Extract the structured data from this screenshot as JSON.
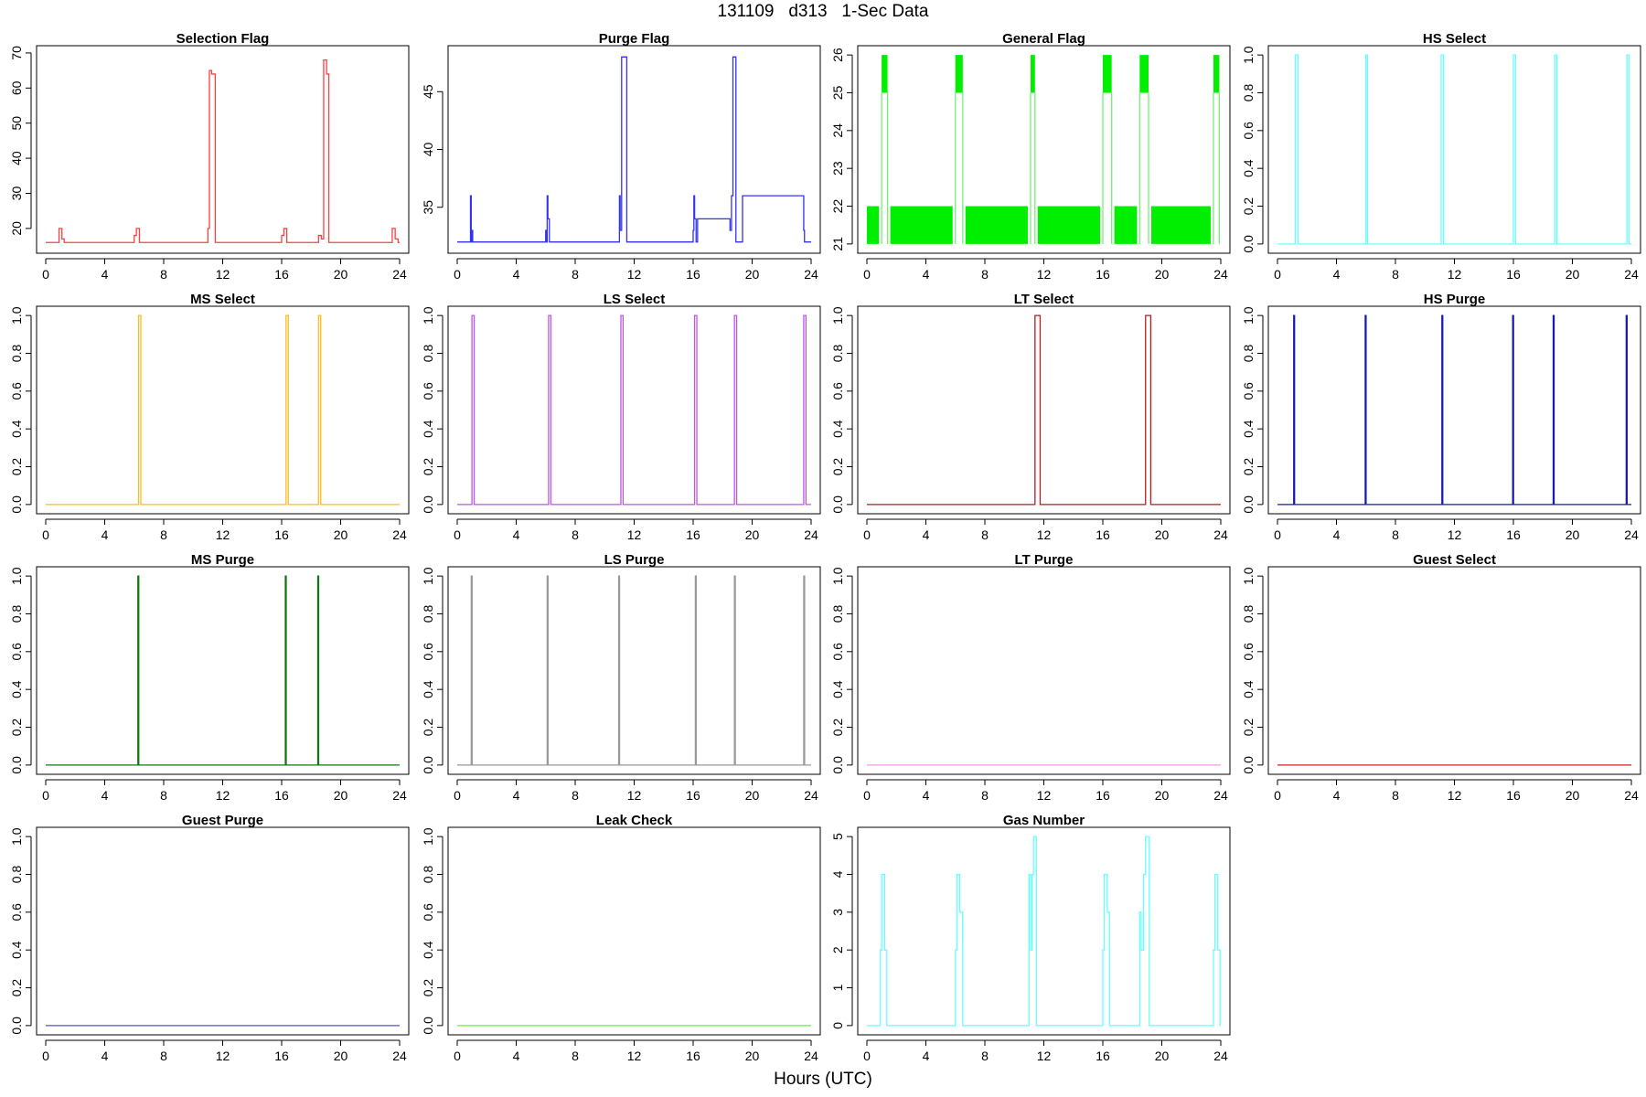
{
  "figure": {
    "title": "131109   d313   1-Sec Data",
    "xlabel": "Hours (UTC)"
  },
  "chart_data": [
    {
      "type": "line",
      "title": "Selection Flag",
      "color": "#ff4040",
      "xlim": [
        0,
        24
      ],
      "ylim": [
        14.5,
        70.5
      ],
      "xticks": [
        0,
        4,
        8,
        12,
        16,
        20,
        24
      ],
      "yticks": [
        20,
        30,
        40,
        50,
        60,
        70
      ],
      "x": [
        0,
        0.9,
        0.9,
        1.1,
        1.1,
        1.25,
        1.25,
        6.0,
        6.0,
        6.15,
        6.15,
        6.35,
        6.35,
        11.0,
        11.0,
        11.1,
        11.1,
        11.25,
        11.25,
        11.5,
        11.5,
        16.0,
        16.0,
        16.15,
        16.15,
        16.35,
        16.35,
        18.5,
        18.5,
        18.7,
        18.7,
        18.85,
        18.85,
        19.05,
        19.05,
        19.2,
        19.2,
        23.5,
        23.5,
        23.7,
        23.7,
        23.9,
        23.9,
        24
      ],
      "y": [
        16,
        16,
        20,
        20,
        17,
        17,
        16,
        16,
        18,
        18,
        20,
        20,
        16,
        16,
        20,
        20,
        65,
        65,
        64,
        64,
        16,
        16,
        18,
        18,
        20,
        20,
        16,
        16,
        18,
        18,
        17,
        17,
        68,
        68,
        64,
        64,
        16,
        16,
        20,
        20,
        17,
        17,
        16,
        16
      ]
    },
    {
      "type": "line",
      "title": "Purge Flag",
      "color": "#3333ee",
      "xlim": [
        0,
        24
      ],
      "ylim": [
        31.5,
        48.5
      ],
      "xticks": [
        0,
        4,
        8,
        12,
        16,
        20,
        24
      ],
      "yticks": [
        35,
        40,
        45
      ],
      "x": [
        0,
        0.9,
        0.9,
        0.95,
        0.95,
        1.0,
        1.0,
        1.05,
        1.05,
        1.15,
        1.15,
        6.0,
        6.0,
        6.05,
        6.05,
        6.1,
        6.1,
        6.15,
        6.15,
        6.25,
        6.25,
        6.35,
        6.35,
        11.0,
        11.0,
        11.05,
        11.05,
        11.15,
        11.15,
        11.25,
        11.25,
        11.5,
        11.5,
        16.0,
        16.0,
        16.05,
        16.05,
        16.1,
        16.1,
        16.2,
        16.2,
        16.3,
        16.3,
        18.5,
        18.5,
        18.6,
        18.6,
        18.7,
        18.7,
        18.9,
        18.9,
        19.35,
        19.35,
        23.5,
        23.5,
        23.55,
        23.55,
        23.65,
        23.65,
        24
      ],
      "y": [
        32,
        32,
        36,
        36,
        32,
        32,
        33,
        33,
        32,
        32,
        32,
        32,
        33,
        33,
        32,
        32,
        36,
        36,
        34,
        34,
        32,
        32,
        32,
        32,
        36,
        36,
        33,
        33,
        48,
        48,
        48,
        48,
        32,
        32,
        33,
        33,
        36,
        36,
        34,
        34,
        32,
        32,
        34,
        34,
        33,
        33,
        36,
        36,
        48,
        48,
        32,
        32,
        36,
        36,
        33,
        33,
        32,
        32,
        32,
        32
      ]
    },
    {
      "type": "line",
      "title": "General Flag",
      "color": "#00ee00",
      "xlim": [
        0,
        24
      ],
      "ylim": [
        20.9,
        26.1
      ],
      "xticks": [
        0,
        4,
        8,
        12,
        16,
        20,
        24
      ],
      "yticks": [
        21,
        22,
        23,
        24,
        25,
        26
      ],
      "spikes": [
        [
          1.0,
          1.4
        ],
        [
          6.0,
          6.5
        ],
        [
          11.1,
          11.4
        ],
        [
          16.0,
          16.6
        ],
        [
          18.5,
          19.1
        ],
        [
          23.5,
          23.9
        ]
      ],
      "band": [
        21,
        22
      ]
    },
    {
      "type": "line",
      "title": "HS Select",
      "color": "#66ffff",
      "xlim": [
        0,
        24
      ],
      "ylim": [
        -0.02,
        1.02
      ],
      "xticks": [
        0,
        4,
        8,
        12,
        16,
        20,
        24
      ],
      "yticks": [
        "0.0",
        "0.2",
        "0.4",
        "0.6",
        "0.8",
        "1.0"
      ],
      "pulses": [
        [
          1.2,
          1.4
        ],
        [
          6.0,
          6.1
        ],
        [
          11.1,
          11.25
        ],
        [
          16.0,
          16.15
        ],
        [
          18.8,
          18.95
        ],
        [
          23.7,
          23.85
        ]
      ]
    },
    {
      "type": "line",
      "title": "MS Select",
      "color": "#ffbb22",
      "xlim": [
        0,
        24
      ],
      "ylim": [
        -0.02,
        1.02
      ],
      "xticks": [
        0,
        4,
        8,
        12,
        16,
        20,
        24
      ],
      "yticks": [
        "0.0",
        "0.2",
        "0.4",
        "0.6",
        "0.8",
        "1.0"
      ],
      "pulses": [
        [
          6.3,
          6.45
        ],
        [
          16.3,
          16.45
        ],
        [
          18.5,
          18.65
        ]
      ]
    },
    {
      "type": "line",
      "title": "LS Select",
      "color": "#bb55ee",
      "xlim": [
        0,
        24
      ],
      "ylim": [
        -0.02,
        1.02
      ],
      "xticks": [
        0,
        4,
        8,
        12,
        16,
        20,
        24
      ],
      "yticks": [
        "0.0",
        "0.2",
        "0.4",
        "0.6",
        "0.8",
        "1.0"
      ],
      "pulses": [
        [
          1.0,
          1.15
        ],
        [
          6.2,
          6.35
        ],
        [
          11.1,
          11.25
        ],
        [
          16.1,
          16.25
        ],
        [
          18.8,
          18.95
        ],
        [
          23.5,
          23.65
        ]
      ]
    },
    {
      "type": "line",
      "title": "LT Select",
      "color": "#aa2222",
      "xlim": [
        0,
        24
      ],
      "ylim": [
        -0.02,
        1.02
      ],
      "xticks": [
        0,
        4,
        8,
        12,
        16,
        20,
        24
      ],
      "yticks": [
        "0.0",
        "0.2",
        "0.4",
        "0.6",
        "0.8",
        "1.0"
      ],
      "pulses": [
        [
          11.4,
          11.75
        ],
        [
          18.9,
          19.25
        ]
      ]
    },
    {
      "type": "line",
      "title": "HS Purge",
      "color": "#1a1aaa",
      "xlim": [
        0,
        24
      ],
      "ylim": [
        -0.02,
        1.02
      ],
      "xticks": [
        0,
        4,
        8,
        12,
        16,
        20,
        24
      ],
      "yticks": [
        "0.0",
        "0.2",
        "0.4",
        "0.6",
        "0.8",
        "1.0"
      ],
      "pulses": [
        [
          1.1,
          1.16
        ],
        [
          5.95,
          6.01
        ],
        [
          11.15,
          11.21
        ],
        [
          15.95,
          16.01
        ],
        [
          18.7,
          18.76
        ],
        [
          23.65,
          23.71
        ]
      ]
    },
    {
      "type": "line",
      "title": "MS Purge",
      "color": "#117711",
      "xlim": [
        0,
        24
      ],
      "ylim": [
        -0.02,
        1.02
      ],
      "xticks": [
        0,
        4,
        8,
        12,
        16,
        20,
        24
      ],
      "yticks": [
        "0.0",
        "0.2",
        "0.4",
        "0.6",
        "0.8",
        "1.0"
      ],
      "pulses": [
        [
          6.25,
          6.31
        ],
        [
          16.25,
          16.31
        ],
        [
          18.45,
          18.51
        ]
      ]
    },
    {
      "type": "line",
      "title": "LS Purge",
      "color": "#999999",
      "xlim": [
        0,
        24
      ],
      "ylim": [
        -0.02,
        1.02
      ],
      "xticks": [
        0,
        4,
        8,
        12,
        16,
        20,
        24
      ],
      "yticks": [
        "0.0",
        "0.2",
        "0.4",
        "0.6",
        "0.8",
        "1.0"
      ],
      "pulses": [
        [
          0.95,
          1.01
        ],
        [
          6.1,
          6.16
        ],
        [
          10.95,
          11.01
        ],
        [
          16.15,
          16.21
        ],
        [
          18.8,
          18.86
        ],
        [
          23.5,
          23.56
        ]
      ]
    },
    {
      "type": "line",
      "title": "LT Purge",
      "color": "#ee99ee",
      "xlim": [
        0,
        24
      ],
      "ylim": [
        -0.02,
        1.02
      ],
      "xticks": [
        0,
        4,
        8,
        12,
        16,
        20,
        24
      ],
      "yticks": [
        "0.0",
        "0.2",
        "0.4",
        "0.6",
        "0.8",
        "1.0"
      ],
      "pulses": []
    },
    {
      "type": "line",
      "title": "Guest Select",
      "color": "#cc2222",
      "xlim": [
        0,
        24
      ],
      "ylim": [
        -0.02,
        1.02
      ],
      "xticks": [
        0,
        4,
        8,
        12,
        16,
        20,
        24
      ],
      "yticks": [
        "0.0",
        "0.2",
        "0.4",
        "0.6",
        "0.8",
        "1.0"
      ],
      "pulses": []
    },
    {
      "type": "line",
      "title": "Guest Purge",
      "color": "#5555bb",
      "xlim": [
        0,
        24
      ],
      "ylim": [
        -0.02,
        1.02
      ],
      "xticks": [
        0,
        4,
        8,
        12,
        16,
        20,
        24
      ],
      "yticks": [
        "0.0",
        "0.2",
        "0.4",
        "0.6",
        "0.8",
        "1.0"
      ],
      "pulses": []
    },
    {
      "type": "line",
      "title": "Leak Check",
      "color": "#66ee44",
      "xlim": [
        0,
        24
      ],
      "ylim": [
        -0.02,
        1.02
      ],
      "xticks": [
        0,
        4,
        8,
        12,
        16,
        20,
        24
      ],
      "yticks": [
        "0.0",
        "0.2",
        "0.4",
        "0.6",
        "0.8",
        "1.0"
      ],
      "pulses": []
    },
    {
      "type": "line",
      "title": "Gas Number",
      "color": "#66ffff",
      "xlim": [
        0,
        24
      ],
      "ylim": [
        -0.1,
        5.1
      ],
      "xticks": [
        0,
        4,
        8,
        12,
        16,
        20,
        24
      ],
      "yticks": [
        0,
        1,
        2,
        3,
        4,
        5
      ],
      "x": [
        0,
        0.9,
        0.9,
        1.0,
        1.0,
        1.2,
        1.2,
        1.35,
        1.35,
        6.0,
        6.0,
        6.1,
        6.1,
        6.3,
        6.3,
        6.5,
        6.5,
        11.0,
        11.0,
        11.1,
        11.1,
        11.2,
        11.2,
        11.3,
        11.3,
        11.5,
        11.5,
        16.0,
        16.0,
        16.1,
        16.1,
        16.3,
        16.3,
        16.45,
        16.45,
        18.5,
        18.5,
        18.6,
        18.6,
        18.75,
        18.75,
        18.9,
        18.9,
        19.15,
        19.15,
        23.5,
        23.5,
        23.6,
        23.6,
        23.8,
        23.8,
        23.95,
        23.95,
        24
      ],
      "y": [
        0,
        0,
        2,
        2,
        4,
        4,
        2,
        2,
        0,
        0,
        2,
        2,
        4,
        4,
        3,
        3,
        0,
        0,
        4,
        4,
        2,
        2,
        4,
        4,
        5,
        5,
        0,
        0,
        2,
        2,
        4,
        4,
        3,
        3,
        0,
        0,
        3,
        3,
        2,
        2,
        4,
        4,
        5,
        5,
        0,
        0,
        2,
        2,
        4,
        4,
        2,
        2,
        0,
        0
      ]
    }
  ]
}
